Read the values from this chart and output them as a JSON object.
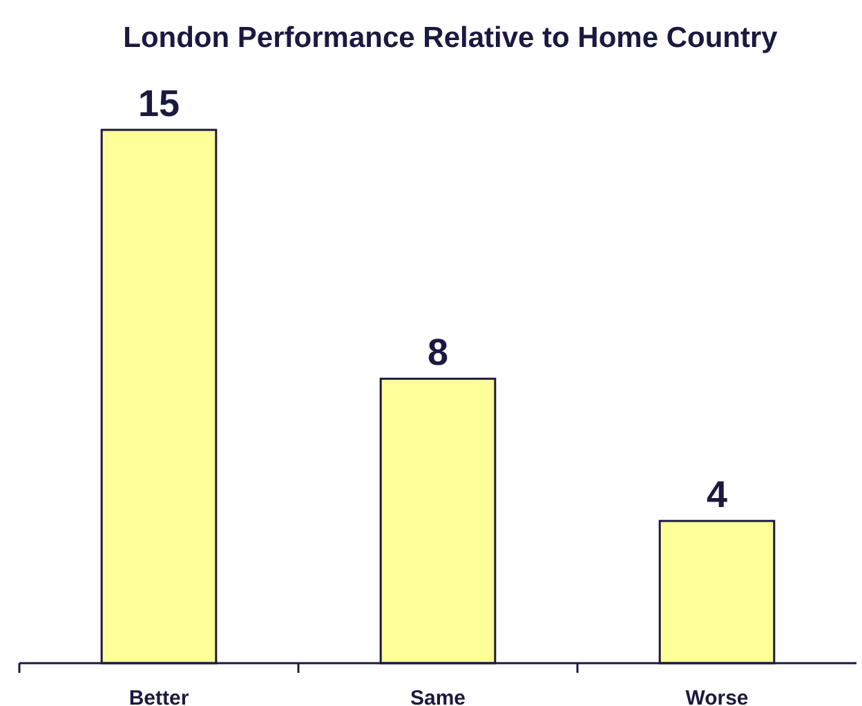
{
  "chart_data": {
    "type": "bar",
    "title": "London Performance Relative to Home Country",
    "categories": [
      "Better",
      "Same",
      "Worse"
    ],
    "values": [
      15,
      8,
      4
    ],
    "color": "#ffff99",
    "data_labels": true
  }
}
